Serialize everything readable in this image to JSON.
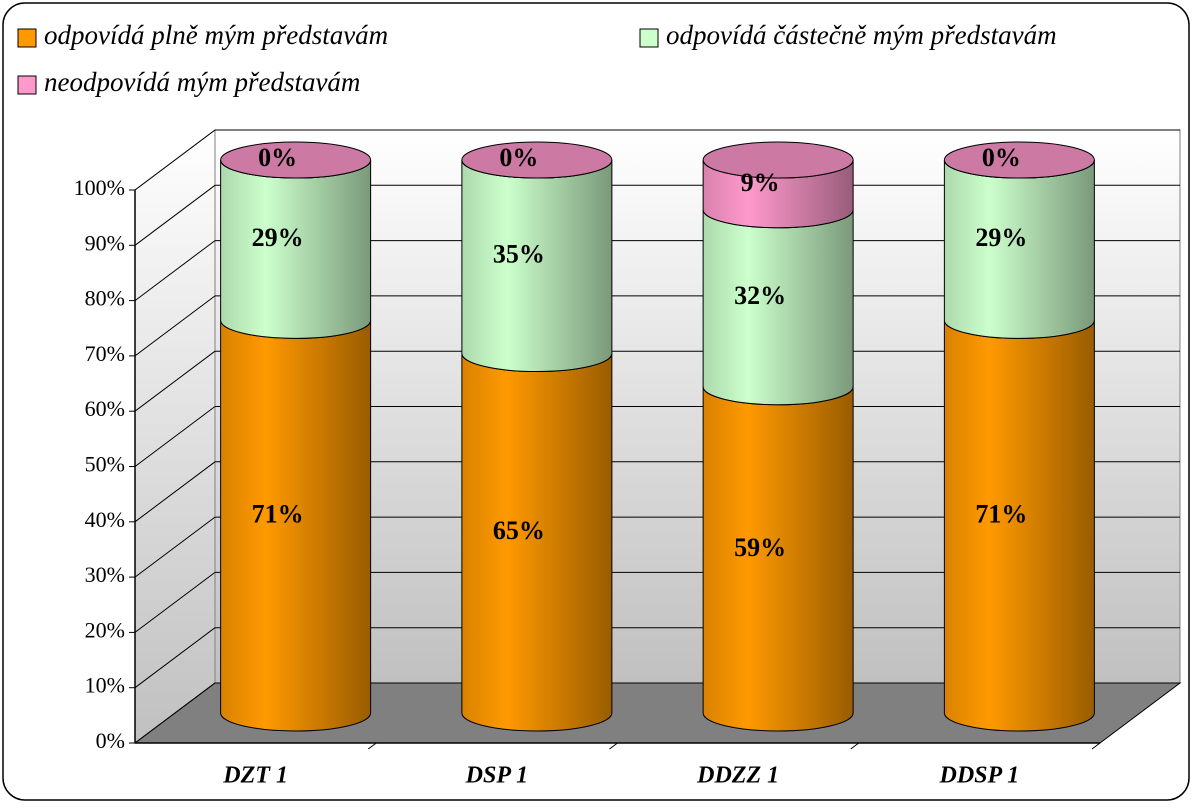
{
  "chart_data": {
    "type": "bar3d_stacked_cylinder",
    "categories": [
      "DZT 1",
      "DSP 1",
      "DDZZ 1",
      "DDSP 1"
    ],
    "series": [
      {
        "name": "odpovídá plně mým představám",
        "color": "#ff9900",
        "values": [
          71,
          65,
          59,
          71
        ],
        "value_labels": [
          "71%",
          "65%",
          "59%",
          "71%"
        ]
      },
      {
        "name": "odpovídá částečně mým představám",
        "color": "#ccffcc",
        "values": [
          29,
          35,
          32,
          29
        ],
        "value_labels": [
          "29%",
          "35%",
          "32%",
          "29%"
        ]
      },
      {
        "name": "neodpovídá mým představám",
        "color": "#ff99cc",
        "values": [
          0,
          0,
          9,
          0
        ],
        "value_labels": [
          "0%",
          "0%",
          "9%",
          "0%"
        ]
      }
    ],
    "ylim": [
      0,
      100
    ],
    "yticks": [
      {
        "value": 0,
        "label": "0%"
      },
      {
        "value": 10,
        "label": "10%"
      },
      {
        "value": 20,
        "label": "20%"
      },
      {
        "value": 30,
        "label": "30%"
      },
      {
        "value": 40,
        "label": "40%"
      },
      {
        "value": 50,
        "label": "50%"
      },
      {
        "value": 60,
        "label": "60%"
      },
      {
        "value": 70,
        "label": "70%"
      },
      {
        "value": 80,
        "label": "80%"
      },
      {
        "value": 90,
        "label": "90%"
      },
      {
        "value": 100,
        "label": "100%"
      }
    ],
    "grid": true,
    "legend": "top"
  }
}
